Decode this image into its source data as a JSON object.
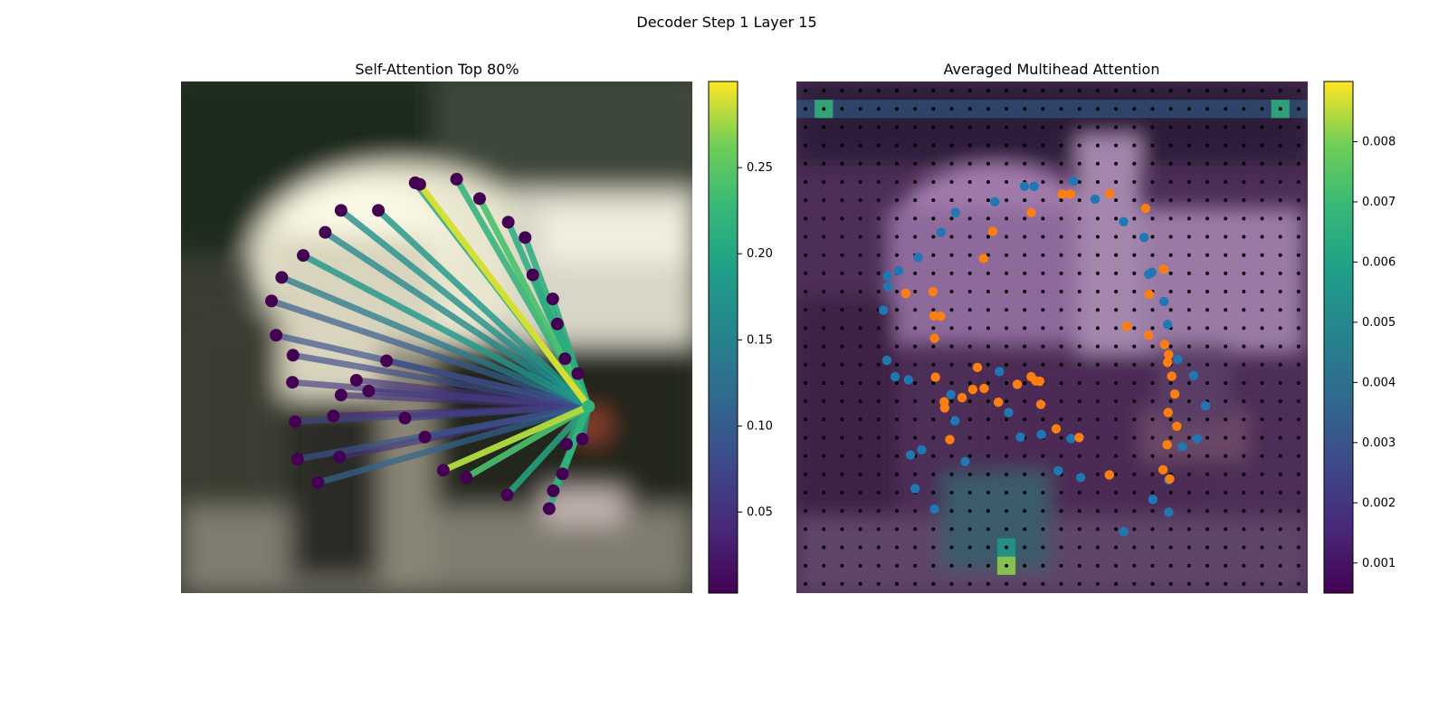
{
  "figure": {
    "suptitle": "Decoder Step 1 Layer 15"
  },
  "chart_data": [
    {
      "type": "scatter",
      "title": "Self-Attention Top 80%",
      "xlim": [
        0,
        1
      ],
      "ylim": [
        0,
        1
      ],
      "grid": false,
      "background": "blurred street photo",
      "colormap": "viridis",
      "colorbar": {
        "min": 0.003,
        "max": 0.3,
        "ticks": [
          0.05,
          0.1,
          0.15,
          0.2,
          0.25
        ],
        "tick_labels": [
          "0.05",
          "0.10",
          "0.15",
          "0.20",
          "0.25"
        ]
      },
      "query_point": {
        "x": 0.797,
        "y": 0.365,
        "value": 0.22
      },
      "points": [
        {
          "x": 0.467,
          "y": 0.799,
          "w": 0.29
        },
        {
          "x": 0.539,
          "y": 0.809,
          "w": 0.22
        },
        {
          "x": 0.584,
          "y": 0.771,
          "w": 0.24
        },
        {
          "x": 0.386,
          "y": 0.748,
          "w": 0.18
        },
        {
          "x": 0.313,
          "y": 0.748,
          "w": 0.17
        },
        {
          "x": 0.282,
          "y": 0.705,
          "w": 0.16
        },
        {
          "x": 0.239,
          "y": 0.66,
          "w": 0.18
        },
        {
          "x": 0.197,
          "y": 0.617,
          "w": 0.14
        },
        {
          "x": 0.177,
          "y": 0.571,
          "w": 0.1
        },
        {
          "x": 0.186,
          "y": 0.504,
          "w": 0.09
        },
        {
          "x": 0.219,
          "y": 0.465,
          "w": 0.08
        },
        {
          "x": 0.218,
          "y": 0.412,
          "w": 0.06
        },
        {
          "x": 0.223,
          "y": 0.335,
          "w": 0.07
        },
        {
          "x": 0.228,
          "y": 0.262,
          "w": 0.09
        },
        {
          "x": 0.268,
          "y": 0.216,
          "w": 0.11
        },
        {
          "x": 0.298,
          "y": 0.346,
          "w": 0.04
        },
        {
          "x": 0.31,
          "y": 0.266,
          "w": 0.05
        },
        {
          "x": 0.313,
          "y": 0.387,
          "w": 0.05
        },
        {
          "x": 0.343,
          "y": 0.416,
          "w": 0.05
        },
        {
          "x": 0.367,
          "y": 0.395,
          "w": 0.06
        },
        {
          "x": 0.402,
          "y": 0.454,
          "w": 0.05
        },
        {
          "x": 0.438,
          "y": 0.342,
          "w": 0.06
        },
        {
          "x": 0.477,
          "y": 0.305,
          "w": 0.07
        },
        {
          "x": 0.513,
          "y": 0.24,
          "w": 0.28
        },
        {
          "x": 0.558,
          "y": 0.226,
          "w": 0.24
        },
        {
          "x": 0.638,
          "y": 0.192,
          "w": 0.2
        },
        {
          "x": 0.728,
          "y": 0.2,
          "w": 0.22
        },
        {
          "x": 0.72,
          "y": 0.165,
          "w": 0.21
        },
        {
          "x": 0.746,
          "y": 0.233,
          "w": 0.2
        },
        {
          "x": 0.754,
          "y": 0.291,
          "w": 0.21
        },
        {
          "x": 0.785,
          "y": 0.301,
          "w": 0.18
        },
        {
          "x": 0.776,
          "y": 0.429,
          "w": 0.18
        },
        {
          "x": 0.751,
          "y": 0.458,
          "w": 0.2
        },
        {
          "x": 0.736,
          "y": 0.526,
          "w": 0.21
        },
        {
          "x": 0.727,
          "y": 0.575,
          "w": 0.21
        },
        {
          "x": 0.688,
          "y": 0.622,
          "w": 0.2
        },
        {
          "x": 0.673,
          "y": 0.695,
          "w": 0.21
        },
        {
          "x": 0.64,
          "y": 0.725,
          "w": 0.21
        },
        {
          "x": 0.458,
          "y": 0.802,
          "w": 0.2
        }
      ]
    },
    {
      "type": "heatmap",
      "title": "Averaged Multihead Attention",
      "xlim": [
        0,
        1
      ],
      "ylim": [
        0,
        1
      ],
      "grid_size": [
        28,
        28
      ],
      "grid": false,
      "colormap": "viridis",
      "colorbar": {
        "min": 0.0005,
        "max": 0.009,
        "ticks": [
          0.001,
          0.002,
          0.003,
          0.004,
          0.005,
          0.006,
          0.007,
          0.008
        ],
        "tick_labels": [
          "0.001",
          "0.002",
          "0.003",
          "0.004",
          "0.005",
          "0.006",
          "0.007",
          "0.008"
        ]
      },
      "hotspots": [
        {
          "col": 1,
          "row": 1,
          "value": 0.0068
        },
        {
          "col": 26,
          "row": 1,
          "value": 0.0066
        },
        {
          "col": 11,
          "row": 26,
          "value": 0.0082
        },
        {
          "col": 11,
          "row": 25,
          "value": 0.0056
        }
      ],
      "row_highlight": {
        "row": 1,
        "value": 0.0036
      },
      "series": [
        {
          "color": "#1f77b4",
          "points": [
            {
              "x": 0.465,
              "y": 0.795
            },
            {
              "x": 0.446,
              "y": 0.795
            },
            {
              "x": 0.542,
              "y": 0.805
            },
            {
              "x": 0.584,
              "y": 0.77
            },
            {
              "x": 0.388,
              "y": 0.765
            },
            {
              "x": 0.311,
              "y": 0.744
            },
            {
              "x": 0.283,
              "y": 0.705
            },
            {
              "x": 0.238,
              "y": 0.656
            },
            {
              "x": 0.2,
              "y": 0.63
            },
            {
              "x": 0.178,
              "y": 0.62
            },
            {
              "x": 0.179,
              "y": 0.599
            },
            {
              "x": 0.17,
              "y": 0.553
            },
            {
              "x": 0.177,
              "y": 0.455
            },
            {
              "x": 0.193,
              "y": 0.423
            },
            {
              "x": 0.219,
              "y": 0.417
            },
            {
              "x": 0.302,
              "y": 0.388
            },
            {
              "x": 0.31,
              "y": 0.337
            },
            {
              "x": 0.33,
              "y": 0.257
            },
            {
              "x": 0.397,
              "y": 0.433
            },
            {
              "x": 0.415,
              "y": 0.353
            },
            {
              "x": 0.438,
              "y": 0.305
            },
            {
              "x": 0.479,
              "y": 0.31
            },
            {
              "x": 0.537,
              "y": 0.302
            },
            {
              "x": 0.64,
              "y": 0.726
            },
            {
              "x": 0.68,
              "y": 0.695
            },
            {
              "x": 0.689,
              "y": 0.623
            },
            {
              "x": 0.695,
              "y": 0.627
            },
            {
              "x": 0.719,
              "y": 0.57
            },
            {
              "x": 0.726,
              "y": 0.525
            },
            {
              "x": 0.746,
              "y": 0.457
            },
            {
              "x": 0.777,
              "y": 0.425
            },
            {
              "x": 0.8,
              "y": 0.366
            },
            {
              "x": 0.755,
              "y": 0.286
            },
            {
              "x": 0.784,
              "y": 0.302
            },
            {
              "x": 0.697,
              "y": 0.183
            },
            {
              "x": 0.728,
              "y": 0.221
            },
            {
              "x": 0.728,
              "y": 0.158
            },
            {
              "x": 0.64,
              "y": 0.12
            },
            {
              "x": 0.556,
              "y": 0.226
            },
            {
              "x": 0.512,
              "y": 0.239
            },
            {
              "x": 0.245,
              "y": 0.28
            },
            {
              "x": 0.223,
              "y": 0.27
            },
            {
              "x": 0.232,
              "y": 0.204
            },
            {
              "x": 0.27,
              "y": 0.164
            }
          ]
        },
        {
          "color": "#ff7f0e",
          "points": [
            {
              "x": 0.52,
              "y": 0.78
            },
            {
              "x": 0.536,
              "y": 0.78
            },
            {
              "x": 0.613,
              "y": 0.781
            },
            {
              "x": 0.683,
              "y": 0.752
            },
            {
              "x": 0.459,
              "y": 0.744
            },
            {
              "x": 0.384,
              "y": 0.707
            },
            {
              "x": 0.366,
              "y": 0.654
            },
            {
              "x": 0.267,
              "y": 0.589
            },
            {
              "x": 0.282,
              "y": 0.541
            },
            {
              "x": 0.27,
              "y": 0.498
            },
            {
              "x": 0.272,
              "y": 0.422
            },
            {
              "x": 0.289,
              "y": 0.374
            },
            {
              "x": 0.324,
              "y": 0.382
            },
            {
              "x": 0.354,
              "y": 0.441
            },
            {
              "x": 0.345,
              "y": 0.398
            },
            {
              "x": 0.367,
              "y": 0.4
            },
            {
              "x": 0.395,
              "y": 0.373
            },
            {
              "x": 0.432,
              "y": 0.408
            },
            {
              "x": 0.459,
              "y": 0.423
            },
            {
              "x": 0.468,
              "y": 0.415
            },
            {
              "x": 0.476,
              "y": 0.414
            },
            {
              "x": 0.478,
              "y": 0.369
            },
            {
              "x": 0.508,
              "y": 0.321
            },
            {
              "x": 0.553,
              "y": 0.304
            },
            {
              "x": 0.612,
              "y": 0.231
            },
            {
              "x": 0.73,
              "y": 0.223
            },
            {
              "x": 0.717,
              "y": 0.241
            },
            {
              "x": 0.725,
              "y": 0.29
            },
            {
              "x": 0.727,
              "y": 0.353
            },
            {
              "x": 0.74,
              "y": 0.389
            },
            {
              "x": 0.744,
              "y": 0.326
            },
            {
              "x": 0.734,
              "y": 0.424
            },
            {
              "x": 0.726,
              "y": 0.451
            },
            {
              "x": 0.728,
              "y": 0.466
            },
            {
              "x": 0.72,
              "y": 0.486
            },
            {
              "x": 0.689,
              "y": 0.504
            },
            {
              "x": 0.646,
              "y": 0.521
            },
            {
              "x": 0.69,
              "y": 0.584
            },
            {
              "x": 0.718,
              "y": 0.633
            },
            {
              "x": 0.269,
              "y": 0.542
            },
            {
              "x": 0.214,
              "y": 0.586
            },
            {
              "x": 0.29,
              "y": 0.362
            },
            {
              "x": 0.3,
              "y": 0.3
            }
          ]
        }
      ]
    }
  ]
}
